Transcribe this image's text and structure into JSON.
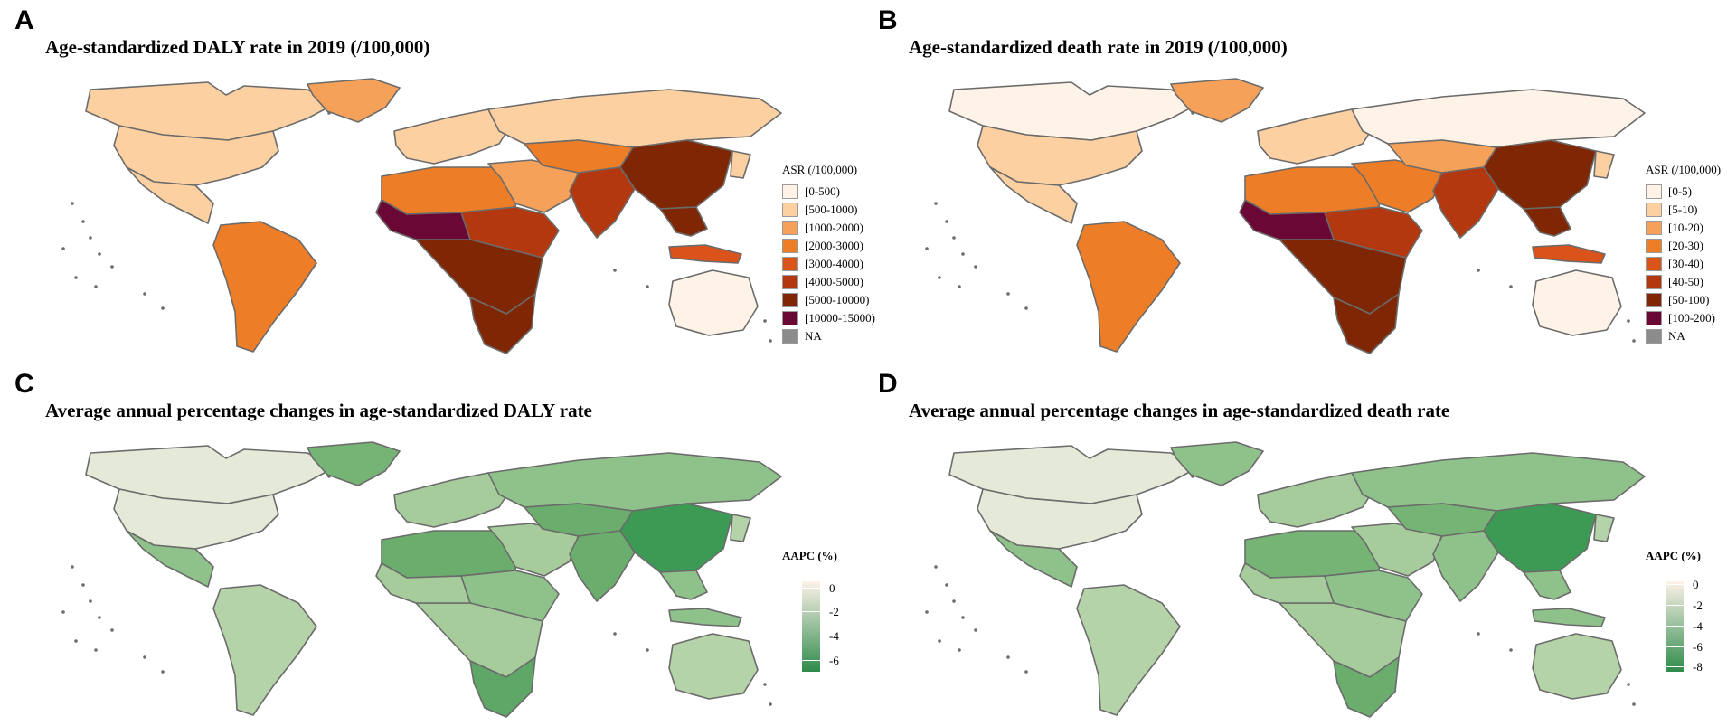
{
  "colors": {
    "ocean": "#ffffff",
    "border": "#6b6b6b",
    "na": "#8c8c8c",
    "diverging_top": "#fdf2e9",
    "diverging_bottom": "#2e8b4a"
  },
  "panels": [
    {
      "letter": "A",
      "title": "Age-standardized DALY rate in 2019 (/100,000)",
      "legend": {
        "title": "ASR (/100,000)",
        "items": [
          {
            "label": "[0-500)",
            "color": "#fef3e6"
          },
          {
            "label": "[500-1000)",
            "color": "#fdd0a2"
          },
          {
            "label": "[1000-2000)",
            "color": "#f6a15a"
          },
          {
            "label": "[2000-3000)",
            "color": "#ee7d27"
          },
          {
            "label": "[3000-4000)",
            "color": "#d9531a"
          },
          {
            "label": "[4000-5000)",
            "color": "#b4380f"
          },
          {
            "label": "[5000-10000)",
            "color": "#7f2704"
          },
          {
            "label": "[10000-15000)",
            "color": "#6b0735"
          },
          {
            "label": "NA",
            "color": "#8c8c8c"
          }
        ]
      }
    },
    {
      "letter": "B",
      "title": "Age-standardized death rate in 2019 (/100,000)",
      "legend": {
        "title": "ASR (/100,000)",
        "items": [
          {
            "label": "[0-5)",
            "color": "#fef3e6"
          },
          {
            "label": "[5-10)",
            "color": "#fdd0a2"
          },
          {
            "label": "[10-20)",
            "color": "#f6a15a"
          },
          {
            "label": "[20-30)",
            "color": "#ee7d27"
          },
          {
            "label": "[30-40)",
            "color": "#d9531a"
          },
          {
            "label": "[40-50)",
            "color": "#b4380f"
          },
          {
            "label": "[50-100)",
            "color": "#7f2704"
          },
          {
            "label": "[100-200)",
            "color": "#6b0735"
          },
          {
            "label": "NA",
            "color": "#8c8c8c"
          }
        ]
      }
    },
    {
      "letter": "C",
      "title": "Average annual percentage changes in age-standardized DALY rate",
      "colorbar": {
        "title": "AAPC (%)",
        "min": -7,
        "max": 0.5,
        "ticks": [
          "0",
          "-2",
          "-4",
          "-6"
        ],
        "tick_values": [
          0,
          -2,
          -4,
          -6
        ]
      }
    },
    {
      "letter": "D",
      "title": "Average annual percentage changes in age-standardized death rate",
      "colorbar": {
        "title": "AAPC (%)",
        "min": -8.5,
        "max": 0.3,
        "ticks": [
          "0",
          "-2",
          "-4",
          "-6",
          "-8"
        ],
        "tick_values": [
          0,
          -2,
          -4,
          -6,
          -8
        ]
      }
    }
  ],
  "regions": {
    "a": [
      "#fdd0a2",
      "#fdd0a2",
      "#fdd0a2",
      "#f6a15a",
      "#fdd0a2",
      "#ee7d27",
      "#f6a15a",
      "#fdd0a2",
      "#ee7d27",
      "#b4380f",
      "#b4380f",
      "#7f2704",
      "#6b0735",
      "#7f2704",
      "#7f2704",
      "#ee7d27",
      "#fef3e6",
      "#7f2704",
      "#fdd0a2",
      "#d9531a"
    ],
    "b": [
      "#fef3e6",
      "#fdd0a2",
      "#fdd0a2",
      "#f6a15a",
      "#fdd0a2",
      "#ee7d27",
      "#ee7d27",
      "#fef3e6",
      "#f6a15a",
      "#b4380f",
      "#b4380f",
      "#7f2704",
      "#6b0735",
      "#7f2704",
      "#7f2704",
      "#ee7d27",
      "#fef3e6",
      "#7f2704",
      "#fdd0a2",
      "#d9531a"
    ],
    "c": [
      "#e5ead8",
      "#e5ead8",
      "#8fc18a",
      "#76b476",
      "#a6cc9c",
      "#6aad6d",
      "#a6cc9c",
      "#8fc18a",
      "#6aad6d",
      "#8fc18a",
      "#6aad6d",
      "#a6cc9c",
      "#a6cc9c",
      "#5ea766",
      "#3d9a54",
      "#b5d3a8",
      "#b5d3a8",
      "#8fc18a",
      "#b5d3a8",
      "#8fc18a"
    ],
    "d": [
      "#e5ead8",
      "#e5ead8",
      "#8fc18a",
      "#8fc18a",
      "#a6cc9c",
      "#76b476",
      "#a6cc9c",
      "#8fc18a",
      "#76b476",
      "#8fc18a",
      "#8fc18a",
      "#a6cc9c",
      "#a6cc9c",
      "#6aad6d",
      "#3d9a54",
      "#b5d3a8",
      "#b5d3a8",
      "#8fc18a",
      "#b5d3a8",
      "#8fc18a"
    ]
  }
}
